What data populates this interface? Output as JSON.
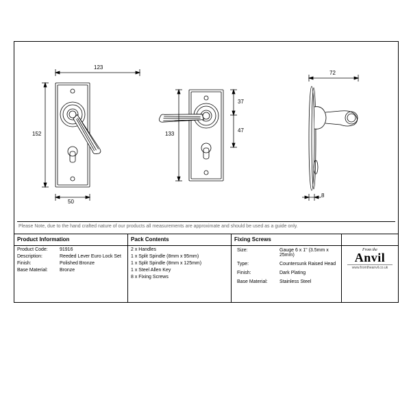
{
  "note_text": "Please Note, due to the hand crafted nature of our products all measurements are approximate and should be used as a guide only.",
  "dimensions": {
    "front": {
      "width_top": "123",
      "height_left": "152",
      "width_bottom": "50"
    },
    "rear": {
      "height_left": "133",
      "upper_right": "37",
      "lower_right": "47"
    },
    "side": {
      "width_top": "72",
      "depth_bottom": "8"
    }
  },
  "columns": {
    "product_info": {
      "header": "Product Information",
      "rows": [
        {
          "label": "Product Code:",
          "value": "91916"
        },
        {
          "label": "Description:",
          "value": "Reeded Lever Euro Lock Set"
        },
        {
          "label": "Finish:",
          "value": "Polished Bronze"
        },
        {
          "label": "Base Material:",
          "value": "Bronze"
        }
      ]
    },
    "pack_contents": {
      "header": "Pack Contents",
      "rows": [
        "2 x Handles",
        "1 x Split Spindle (8mm x 95mm)",
        "1 x Split Spindle (8mm x 125mm)",
        "1 x Steel Allen Key",
        "8 x Fixing Screws"
      ]
    },
    "fixing_screws": {
      "header": "Fixing Screws",
      "rows": [
        {
          "label": "Size:",
          "value": "Gauge 6 x 1\" (3.5mm x 25mm)"
        },
        {
          "label": "Type:",
          "value": "Countersunk Raised Head"
        },
        {
          "label": "Finish:",
          "value": "Dark Plating"
        },
        {
          "label": "Base Material:",
          "value": "Stainless Steel"
        }
      ]
    }
  },
  "logo": {
    "script": "From the",
    "main": "Anvil",
    "url": "www.fromtheanvil.co.uk"
  },
  "style": {
    "stroke": "#000000",
    "fill": "#ffffff",
    "dimline": "#000000"
  }
}
